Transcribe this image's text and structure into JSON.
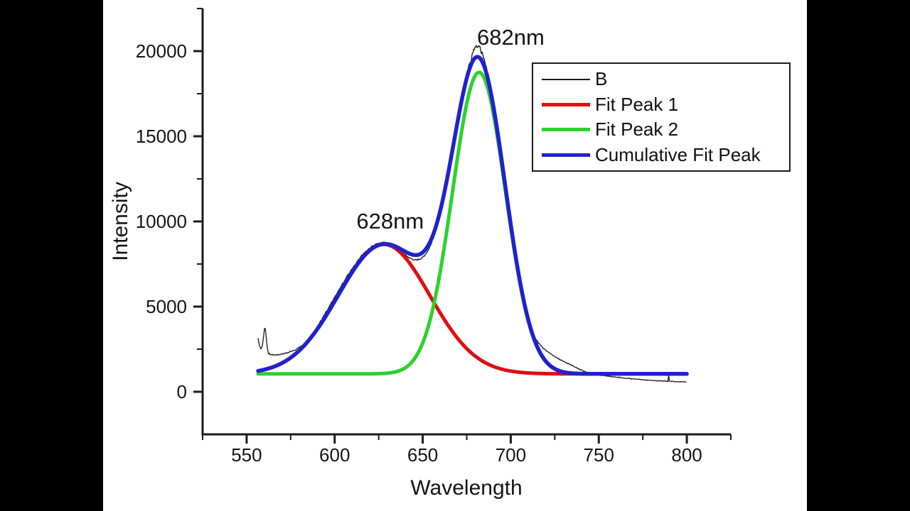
{
  "panel": {
    "outer_bg": "#000000",
    "bg": "#ffffff",
    "axis_color": "#1c1c1c",
    "text_color": "#141414"
  },
  "chart_data": {
    "type": "line",
    "title": "",
    "xlabel": "Wavelength",
    "ylabel": "Intensity",
    "xlim": [
      525,
      825
    ],
    "ylim": [
      -2500,
      22500
    ],
    "grid": false,
    "legend_position": "top-right",
    "x_major_ticks": [
      550,
      600,
      650,
      700,
      750,
      800
    ],
    "x_minor_ticks": [
      525,
      575,
      625,
      675,
      725,
      775,
      825
    ],
    "y_major_ticks": [
      0,
      5000,
      10000,
      15000,
      20000
    ],
    "y_minor_ticks": [
      2500,
      7500,
      12500,
      17500,
      22500
    ],
    "model": {
      "baseline": 1050,
      "x_range": [
        556.5,
        800
      ],
      "peaks": [
        {
          "name": "Fit Peak 1",
          "center": 628,
          "amplitude": 7600,
          "sigma": 26,
          "color": "#dd0f0f",
          "width": 5
        },
        {
          "name": "Fit Peak 2",
          "center": 682,
          "amplitude": 17700,
          "sigma": 15,
          "color": "#2ed12e",
          "width": 5
        }
      ],
      "cumulative": {
        "name": "Cumulative Fit Peak",
        "color": "#2121cd",
        "width": 5.5
      }
    },
    "data_series": {
      "name": "B",
      "color": "#181818",
      "width": 1.3,
      "head_points": [
        [
          556.5,
          3150
        ],
        [
          557.2,
          2720
        ],
        [
          558,
          2520
        ],
        [
          558.8,
          2600
        ],
        [
          559.5,
          3150
        ],
        [
          560.3,
          3850
        ],
        [
          561,
          3350
        ],
        [
          561.8,
          2500
        ],
        [
          562.5,
          2250
        ],
        [
          564,
          2180
        ],
        [
          566,
          2150
        ],
        [
          568,
          2160
        ],
        [
          570,
          2190
        ],
        [
          572,
          2250
        ],
        [
          574,
          2320
        ],
        [
          576,
          2400
        ],
        [
          578,
          2500
        ],
        [
          580,
          2600
        ],
        [
          582,
          2750
        ],
        [
          584,
          2920
        ],
        [
          586,
          3140
        ]
      ],
      "dev_points": [
        [
          586,
          30
        ],
        [
          590,
          140
        ],
        [
          594,
          210
        ],
        [
          598,
          235
        ],
        [
          602,
          240
        ],
        [
          606,
          230
        ],
        [
          610,
          205
        ],
        [
          614,
          185
        ],
        [
          618,
          160
        ],
        [
          622,
          130
        ],
        [
          626,
          100
        ],
        [
          630,
          60
        ],
        [
          634,
          -40
        ],
        [
          638,
          -140
        ],
        [
          642,
          -230
        ],
        [
          646,
          -285
        ],
        [
          650,
          -300
        ],
        [
          654,
          -260
        ],
        [
          658,
          -180
        ],
        [
          662,
          -100
        ],
        [
          666,
          -30
        ],
        [
          670,
          10
        ],
        [
          674,
          80
        ],
        [
          677,
          300
        ],
        [
          679,
          560
        ],
        [
          681,
          650
        ],
        [
          682,
          620
        ],
        [
          683,
          560
        ],
        [
          685,
          420
        ],
        [
          687,
          330
        ],
        [
          690,
          290
        ],
        [
          694,
          275
        ],
        [
          698,
          260
        ],
        [
          702,
          250
        ],
        [
          706,
          240
        ],
        [
          710,
          225
        ],
        [
          714,
          210
        ]
      ],
      "tail_points": [
        [
          714.5,
          3040
        ],
        [
          716,
          2850
        ],
        [
          718,
          2600
        ],
        [
          720,
          2430
        ],
        [
          722,
          2280
        ],
        [
          724,
          2140
        ],
        [
          726,
          2010
        ],
        [
          728,
          1890
        ],
        [
          730,
          1780
        ],
        [
          732,
          1680
        ],
        [
          734,
          1580
        ],
        [
          736,
          1480
        ],
        [
          738,
          1380
        ],
        [
          740,
          1270
        ],
        [
          742,
          1190
        ],
        [
          744,
          1120
        ],
        [
          746,
          1060
        ],
        [
          749,
          1000
        ],
        [
          752,
          960
        ],
        [
          756,
          910
        ],
        [
          760,
          860
        ],
        [
          764,
          810
        ],
        [
          768,
          770
        ],
        [
          772,
          730
        ],
        [
          776,
          700
        ],
        [
          780,
          670
        ],
        [
          784,
          645
        ],
        [
          787,
          630
        ],
        [
          789,
          615
        ],
        [
          789.5,
          600
        ],
        [
          789.8,
          1170
        ],
        [
          790.1,
          620
        ],
        [
          792,
          605
        ],
        [
          794,
          595
        ],
        [
          796,
          585
        ],
        [
          798,
          578
        ],
        [
          800,
          572
        ]
      ],
      "noise_amp": [
        [
          556,
          70
        ],
        [
          585,
          60
        ],
        [
          620,
          65
        ],
        [
          650,
          70
        ],
        [
          675,
          70
        ],
        [
          677,
          200
        ],
        [
          685,
          200
        ],
        [
          687,
          90
        ],
        [
          713,
          80
        ],
        [
          716,
          40
        ],
        [
          800,
          35
        ]
      ]
    },
    "annotations": [
      {
        "text": "628nm",
        "x": 631.5,
        "y": 10000
      },
      {
        "text": "682nm",
        "x": 700,
        "y": 20790
      }
    ]
  },
  "legend": {
    "entries": [
      {
        "label": "B",
        "color": "#181818",
        "thickness": 1.5
      },
      {
        "label": "Fit Peak 1",
        "color": "#dd0f0f",
        "thickness": 5
      },
      {
        "label": "Fit Peak 2",
        "color": "#2ed12e",
        "thickness": 5
      },
      {
        "label": "Cumulative Fit Peak",
        "color": "#2121cd",
        "thickness": 5
      }
    ]
  }
}
